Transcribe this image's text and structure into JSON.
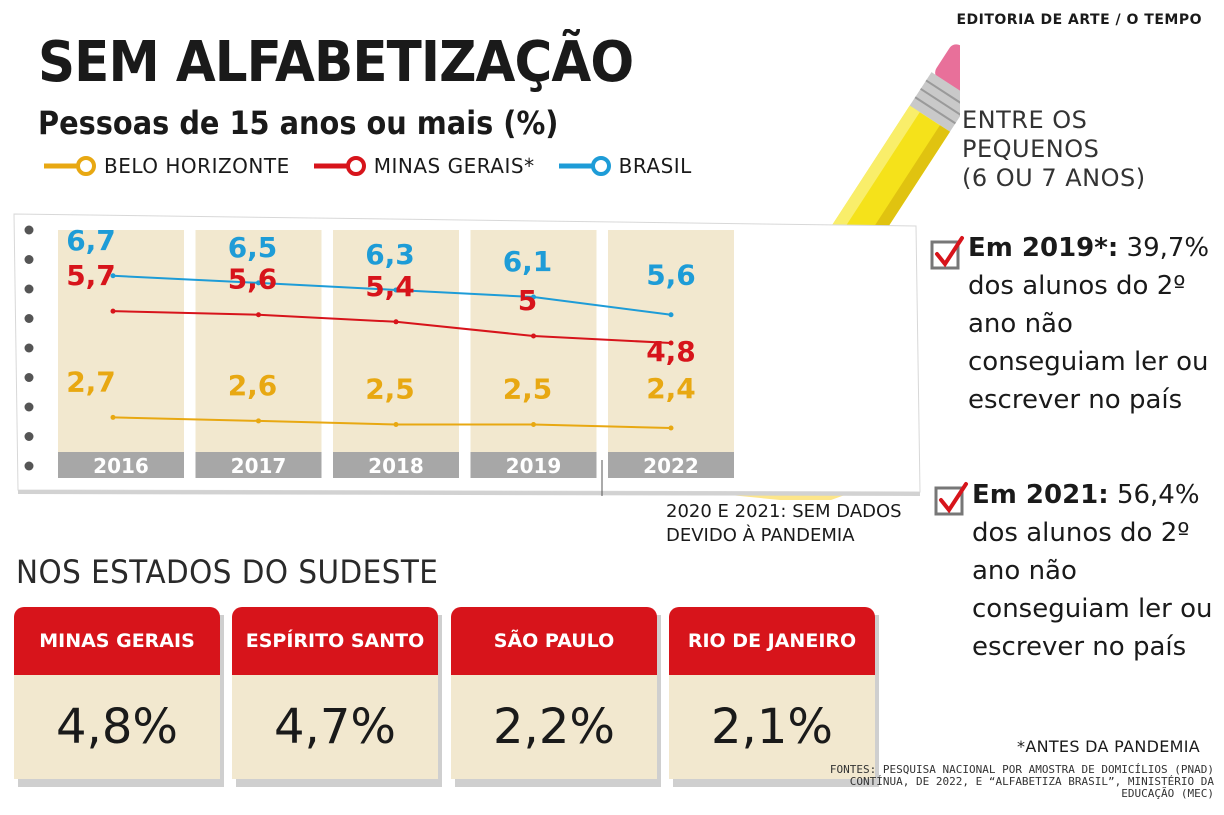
{
  "credit": "EDITORIA DE ARTE / O TEMPO",
  "title": "SEM ALFABETIZAÇÃO",
  "subtitle": "Pessoas de 15 anos ou mais (%)",
  "colors": {
    "bh": "#e8a812",
    "mg": "#d7141b",
    "br": "#1e9cd7",
    "card_red": "#d7141b",
    "column_bg": "#f2e8cf",
    "year_bar": "#a7a7a7"
  },
  "chart_data": {
    "type": "line",
    "categories": [
      "2016",
      "2017",
      "2018",
      "2019",
      "2022"
    ],
    "series": [
      {
        "name": "BELO HORIZONTE",
        "values": [
          2.7,
          2.6,
          2.5,
          2.5,
          2.4
        ],
        "labels": [
          "2,7",
          "2,6",
          "2,5",
          "2,5",
          "2,4"
        ],
        "color": "#e8a812"
      },
      {
        "name": "MINAS GERAIS*",
        "values": [
          5.7,
          5.6,
          5.4,
          5.0,
          4.8
        ],
        "labels": [
          "5,7",
          "5,6",
          "5,4",
          "5",
          "4,8"
        ],
        "color": "#d7141b"
      },
      {
        "name": "BRASIL",
        "values": [
          6.7,
          6.5,
          6.3,
          6.1,
          5.6
        ],
        "labels": [
          "6,7",
          "6,5",
          "6,3",
          "6,1",
          "5,6"
        ],
        "color": "#1e9cd7"
      }
    ],
    "note": "2020 E 2021: SEM DADOS DEVIDO À PANDEMIA"
  },
  "kids": {
    "heading_line1": "ENTRE OS PEQUENOS",
    "heading_line2": "(6 OU 7 ANOS)",
    "fact_2019": {
      "lead": "Em 2019*:",
      "value": "39,7%",
      "text": "dos alunos do 2º ano não conseguiam ler ou escrever no país"
    },
    "fact_2021": {
      "lead": "Em 2021:",
      "value": "56,4%",
      "text": "dos alunos do 2º ano não conseguiam ler ou escrever no país"
    }
  },
  "southeast": {
    "title": "NOS ESTADOS DO SUDESTE",
    "states": [
      {
        "name": "MINAS GERAIS",
        "value": "4,8%"
      },
      {
        "name": "ESPÍRITO SANTO",
        "value": "4,7%"
      },
      {
        "name": "SÃO PAULO",
        "value": "2,2%"
      },
      {
        "name": "RIO DE JANEIRO",
        "value": "2,1%"
      }
    ]
  },
  "footnote": "*ANTES DA PANDEMIA",
  "sources": "FONTES: PESQUISA NACIONAL POR AMOSTRA DE DOMICÍLIOS (PNAD) CONTÍNUA, DE 2022, E “ALFABETIZA BRASIL”, MINISTÉRIO DA EDUCAÇÃO (MEC)"
}
